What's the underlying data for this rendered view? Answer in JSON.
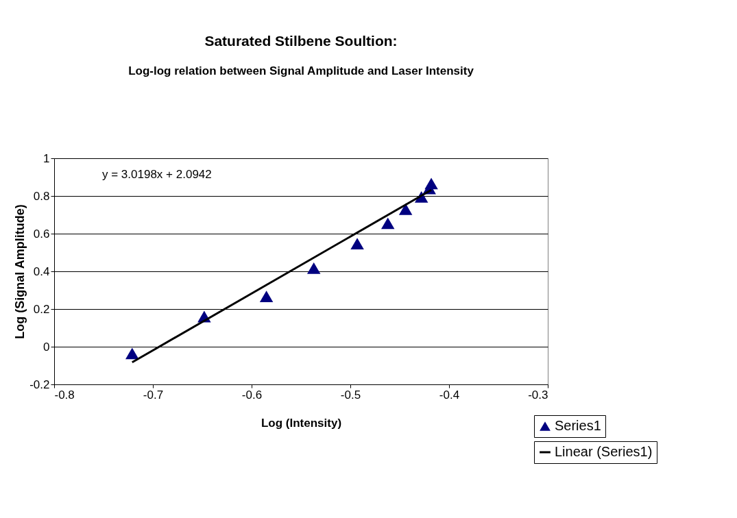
{
  "chart_data": {
    "type": "scatter",
    "title": "Saturated Stilbene Soultion:",
    "subtitle": "Log-log relation between Signal Amplitude and Laser Intensity",
    "xlabel": "Log (Intensity)",
    "ylabel": "Log (Signal Amplitude)",
    "x": [
      -0.721,
      -0.648,
      -0.585,
      -0.537,
      -0.493,
      -0.462,
      -0.444,
      -0.428,
      -0.42,
      -0.418
    ],
    "series": [
      {
        "name": "Series1",
        "color": "#000080",
        "marker": "triangle",
        "values": [
          -0.036,
          0.16,
          0.267,
          0.417,
          0.547,
          0.655,
          0.73,
          0.795,
          0.84,
          0.866
        ]
      },
      {
        "name": "Linear (Series1)",
        "type": "line",
        "color": "#000000",
        "line_style": "solid",
        "x": [
          -0.721,
          -0.418
        ],
        "values": [
          -0.083,
          0.832
        ]
      }
    ],
    "xlim": [
      -0.8,
      -0.3
    ],
    "xticks": [
      -0.8,
      -0.7,
      -0.6,
      -0.5,
      -0.4,
      -0.3
    ],
    "ylim": [
      -0.2,
      1
    ],
    "yticks": [
      -0.2,
      0,
      0.2,
      0.4,
      0.6,
      0.8,
      1
    ],
    "grid": "y",
    "legend": "bottom right",
    "annotations": [
      "y = 3.0198x + 2.0942"
    ]
  }
}
